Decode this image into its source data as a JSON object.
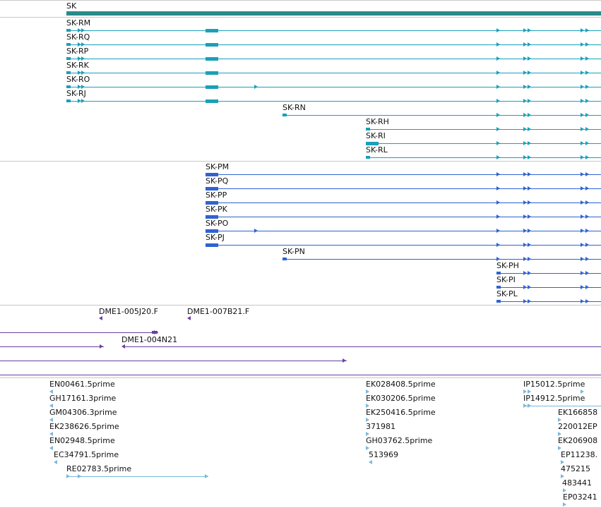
{
  "colors": {
    "gene": "#2a8a8a",
    "transcript_r": "#1aa0b8",
    "transcript_p": "#2f63d0",
    "clone": "#6a3f9e",
    "est": "#7ab8dc",
    "divider": "#c8c8c8"
  },
  "gene": {
    "label": "SK"
  },
  "transcripts_r": [
    {
      "label": "SK-RM"
    },
    {
      "label": "SK-RQ"
    },
    {
      "label": "SK-RP"
    },
    {
      "label": "SK-RK"
    },
    {
      "label": "SK-RO"
    },
    {
      "label": "SK-RJ"
    },
    {
      "label": "SK-RN"
    },
    {
      "label": "SK-RH"
    },
    {
      "label": "SK-RI"
    },
    {
      "label": "SK-RL"
    }
  ],
  "transcripts_p": [
    {
      "label": "SK-PM"
    },
    {
      "label": "SK-PQ"
    },
    {
      "label": "SK-PP"
    },
    {
      "label": "SK-PK"
    },
    {
      "label": "SK-PO"
    },
    {
      "label": "SK-PJ"
    },
    {
      "label": "SK-PN"
    },
    {
      "label": "SK-PH"
    },
    {
      "label": "SK-PI"
    },
    {
      "label": "SK-PL"
    }
  ],
  "clones": [
    {
      "label": "DME1-005J20.F"
    },
    {
      "label": "DME1-007B21.F"
    },
    {
      "label": "DME1-004N21"
    }
  ],
  "ests": [
    {
      "label": "EN00461.5prime"
    },
    {
      "label": "GH17161.3prime"
    },
    {
      "label": "GM04306.3prime"
    },
    {
      "label": "EK238626.5prime"
    },
    {
      "label": "EN02948.5prime"
    },
    {
      "label": "EC34791.5prime"
    },
    {
      "label": "RE02783.5prime"
    },
    {
      "label": "EK028408.5prime"
    },
    {
      "label": "EK030206.5prime"
    },
    {
      "label": "EK250416.5prime"
    },
    {
      "label": "371981"
    },
    {
      "label": "GH03762.5prime"
    },
    {
      "label": "513969"
    },
    {
      "label": "IP15012.5prime"
    },
    {
      "label": "IP14912.5prime"
    },
    {
      "label": "EK166858"
    },
    {
      "label": "220012EP"
    },
    {
      "label": "EK206908"
    },
    {
      "label": "EP11238."
    },
    {
      "label": "475215"
    },
    {
      "label": "483441"
    },
    {
      "label": "EP03241"
    }
  ]
}
